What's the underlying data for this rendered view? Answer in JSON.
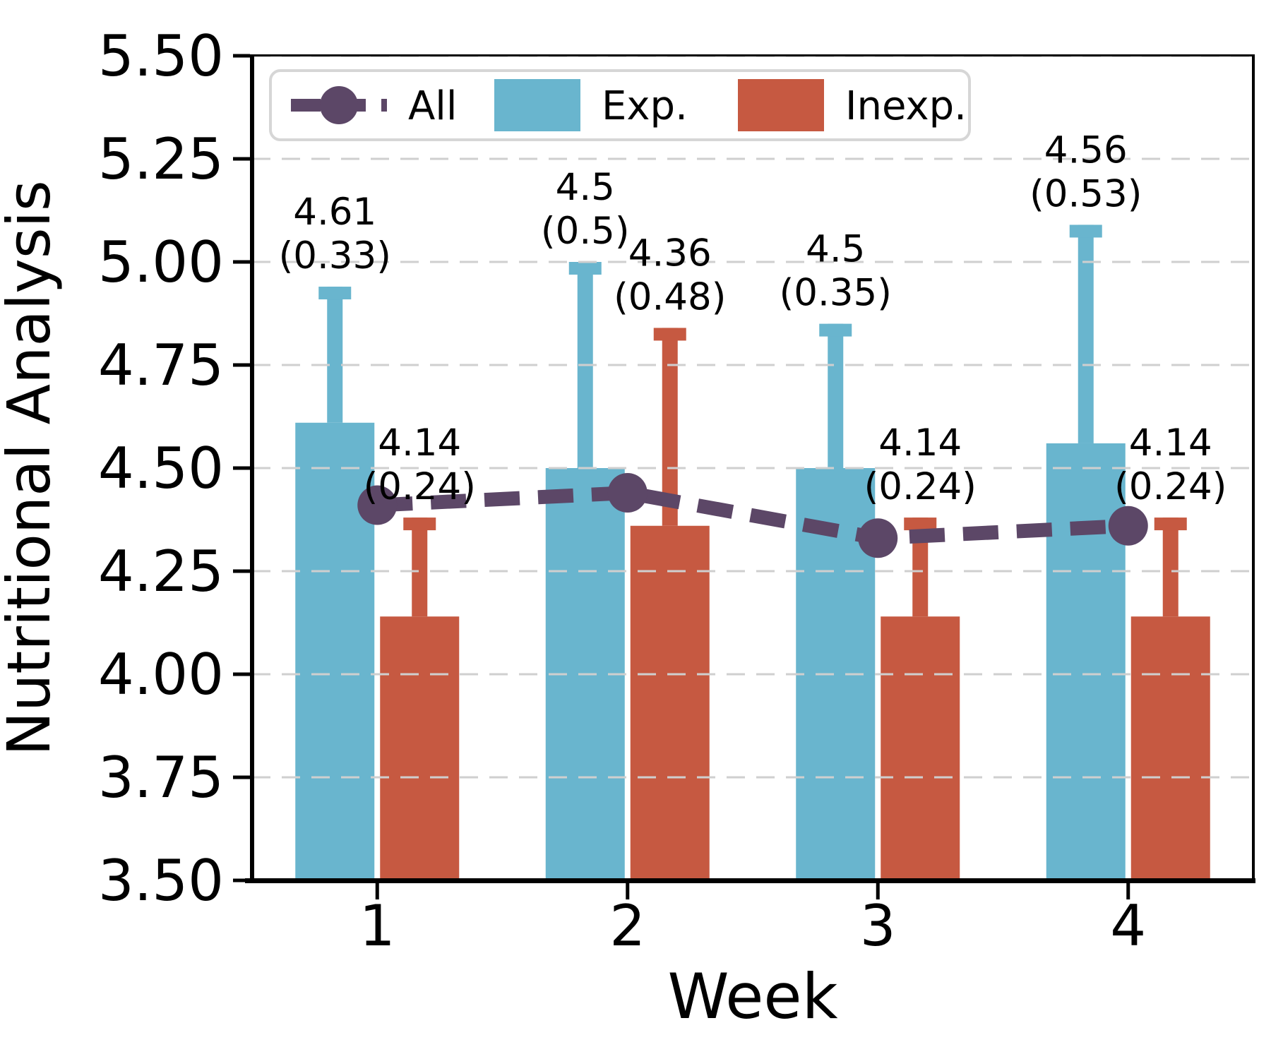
{
  "chart_data": {
    "type": "bar",
    "title": "",
    "xlabel": "Week",
    "ylabel": "Nutritional Analysis",
    "categories": [
      "1",
      "2",
      "3",
      "4"
    ],
    "ylim": [
      3.5,
      5.5
    ],
    "ytick_labels": [
      "3.50",
      "3.75",
      "4.00",
      "4.25",
      "4.50",
      "4.75",
      "5.00",
      "5.25",
      "5.50"
    ],
    "grid": "horizontal-dashed",
    "legend_position": "upper-left",
    "series": [
      {
        "name": "All",
        "type": "line",
        "style": "thick-dashed-with-circle-markers",
        "color": "#5c4767",
        "values": [
          4.41,
          4.44,
          4.33,
          4.36
        ]
      },
      {
        "name": "Exp.",
        "type": "bar",
        "color": "#69b5ce",
        "values": [
          4.61,
          4.5,
          4.5,
          4.56
        ],
        "sd": [
          0.33,
          0.5,
          0.35,
          0.53
        ],
        "value_labels": [
          "4.61",
          "4.5",
          "4.5",
          "4.56"
        ],
        "sd_labels": [
          "(0.33)",
          "(0.5)",
          "(0.35)",
          "(0.53)"
        ]
      },
      {
        "name": "Inexp.",
        "type": "bar",
        "color": "#c65941",
        "values": [
          4.14,
          4.36,
          4.14,
          4.14
        ],
        "sd": [
          0.24,
          0.48,
          0.24,
          0.24
        ],
        "value_labels": [
          "4.14",
          "4.36",
          "4.14",
          "4.14"
        ],
        "sd_labels": [
          "(0.24)",
          "(0.48)",
          "(0.24)",
          "(0.24)"
        ]
      }
    ]
  },
  "legend": {
    "items": [
      {
        "label": "All"
      },
      {
        "label": "Exp."
      },
      {
        "label": "Inexp."
      }
    ]
  },
  "colors": {
    "background": "#ffffff",
    "axis": "#000000",
    "grid": "#cfcfcf",
    "legend_border": "#d6d6d6",
    "all_line": "#5c4767",
    "exp_bar": "#69b5ce",
    "inexp_bar": "#c65941"
  }
}
